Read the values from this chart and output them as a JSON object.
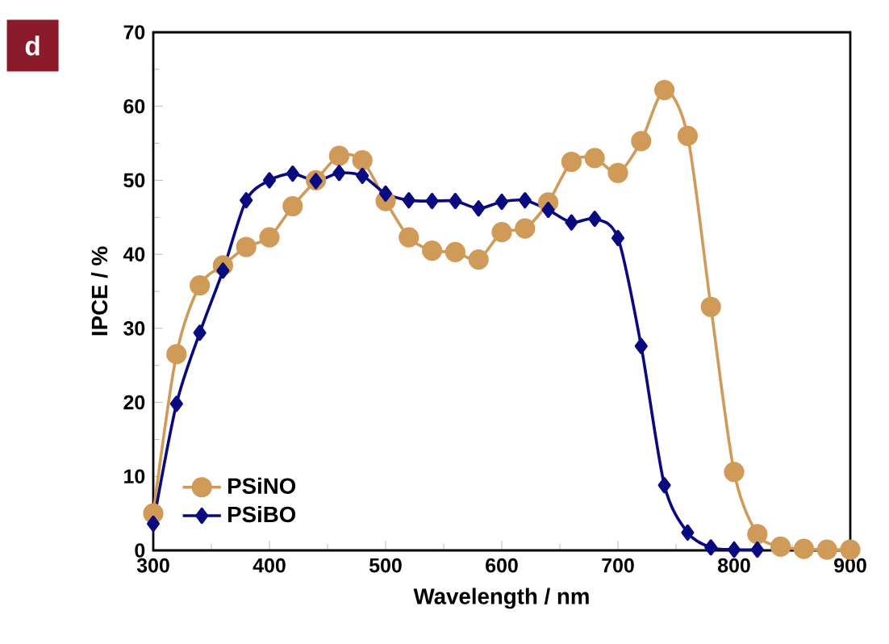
{
  "chart_data": {
    "type": "line",
    "xlabel": "Wavelength / nm",
    "ylabel": "IPCE / %",
    "annotations": [
      "d"
    ],
    "x": [
      300,
      320,
      340,
      360,
      380,
      400,
      420,
      440,
      460,
      480,
      500,
      520,
      540,
      560,
      580,
      600,
      620,
      640,
      660,
      680,
      700,
      720,
      740,
      760,
      780,
      800,
      820,
      840,
      860,
      880,
      900
    ],
    "series": [
      {
        "name": "PSiNO",
        "color": "#d09a58",
        "marker": "circle",
        "values": [
          5,
          26.5,
          35.8,
          38.5,
          41,
          42.3,
          46.5,
          50,
          53.3,
          52.7,
          47.2,
          42.3,
          40.5,
          40.3,
          39.3,
          43,
          43.5,
          47,
          52.5,
          53,
          51,
          55.3,
          62.2,
          56,
          32.9,
          10.6,
          2.2,
          0.5,
          0.2,
          0.1,
          0.1
        ]
      },
      {
        "name": "PSiBO",
        "color": "#0a0a80",
        "marker": "diamond",
        "x": [
          300,
          320,
          340,
          360,
          380,
          400,
          420,
          440,
          460,
          480,
          500,
          520,
          540,
          560,
          580,
          600,
          620,
          640,
          660,
          680,
          700,
          720,
          740,
          760,
          780,
          800,
          820
        ],
        "values": [
          3.6,
          19.8,
          29.4,
          37.8,
          47.3,
          50,
          50.9,
          49.9,
          51,
          50.6,
          48.2,
          47.3,
          47.2,
          47.2,
          46.2,
          47.1,
          47.3,
          46,
          44.3,
          44.8,
          42.2,
          27.6,
          8.8,
          2.4,
          0.4,
          0.1,
          0.1
        ]
      }
    ],
    "xlim": [
      300,
      900
    ],
    "xticks": [
      300,
      400,
      500,
      600,
      700,
      800,
      900
    ],
    "ylim": [
      0,
      70
    ],
    "yticks": [
      0,
      10,
      20,
      30,
      40,
      50,
      60,
      70
    ],
    "legend": "bottom left",
    "line_style": "solid"
  }
}
